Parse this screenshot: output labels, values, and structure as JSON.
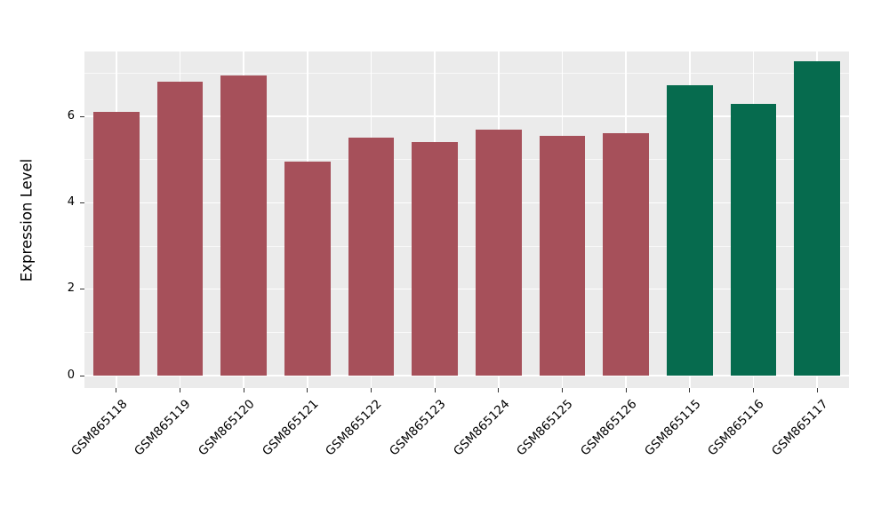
{
  "figure": {
    "background": "#FFFFFF"
  },
  "chart_data": {
    "type": "bar",
    "title": "",
    "xlabel": "",
    "ylabel": "Expression Level",
    "categories": [
      "GSM865118",
      "GSM865119",
      "GSM865120",
      "GSM865121",
      "GSM865122",
      "GSM865123",
      "GSM865124",
      "GSM865125",
      "GSM865126",
      "GSM865115",
      "GSM865116",
      "GSM865117"
    ],
    "values": [
      6.1,
      6.8,
      6.95,
      4.95,
      5.5,
      5.4,
      5.7,
      5.55,
      5.6,
      6.72,
      6.28,
      7.28
    ],
    "bar_colors": [
      "#A6505A",
      "#A6505A",
      "#A6505A",
      "#A6505A",
      "#A6505A",
      "#A6505A",
      "#A6505A",
      "#A6505A",
      "#A6505A",
      "#066B4E",
      "#066B4E",
      "#066B4E"
    ],
    "group_colors": {
      "red_group": "#A6505A",
      "green_group": "#066B4E"
    },
    "ylim": [
      0,
      7.5
    ],
    "yticks": [
      0,
      2,
      4,
      6
    ],
    "minor_yticks": [
      1,
      3,
      5,
      7
    ],
    "panel_bg": "#EBEBEB",
    "grid_major_color": "#FFFFFF",
    "grid_minor_color": "#FFFFFF",
    "grid": true,
    "legend_position": "none"
  }
}
